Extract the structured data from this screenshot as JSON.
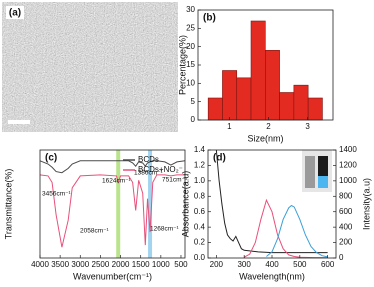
{
  "chart_data": [
    {
      "type": "image",
      "label": "(a)"
    },
    {
      "type": "histogram",
      "label": "(b)",
      "xlabel": "Size(nm)",
      "ylabel": "Percentage(%)",
      "bins": [
        0.46,
        0.825,
        1.19,
        1.555,
        1.92,
        2.285,
        2.65,
        3.015,
        3.38
      ],
      "values": [
        6,
        13.5,
        11.5,
        27,
        19,
        7.5,
        9.5,
        6
      ],
      "color": "#e32b22",
      "xlim": [
        0.2,
        3.65
      ],
      "xticks": [
        1,
        2,
        3
      ],
      "ylim": [
        0,
        30
      ],
      "yticks": [
        0,
        5,
        10,
        15,
        20,
        25,
        30
      ]
    },
    {
      "type": "line",
      "label": "(c)",
      "xlabel": "Wavenumber(cm⁻¹)",
      "ylabel": "Transmittance(%)",
      "x": [
        4000,
        3800,
        3700,
        3600,
        3456,
        3300,
        3200,
        3000,
        2500,
        2100,
        2058,
        2000,
        1800,
        1700,
        1624,
        1550,
        1450,
        1386,
        1330,
        1268,
        1200,
        1100,
        900,
        751,
        600,
        400
      ],
      "series": [
        {
          "name": "BCDs",
          "color": "#4a4a4a",
          "values": [
            90,
            87,
            84,
            80,
            79,
            83,
            87,
            90,
            90,
            90,
            90,
            90,
            90,
            88,
            85,
            89,
            88,
            85,
            88,
            89,
            90,
            90,
            89,
            86,
            89,
            90
          ]
        },
        {
          "name": "BCDs+NO₂⁻",
          "color": "#e8507a",
          "values": [
            77,
            76,
            70,
            40,
            10,
            35,
            65,
            76,
            77,
            76,
            70,
            76,
            76,
            70,
            44,
            72,
            60,
            12,
            55,
            24,
            70,
            77,
            77,
            76,
            77,
            77
          ]
        }
      ],
      "bands": [
        {
          "value": 2058,
          "color": "#b9e48c"
        },
        {
          "value": 1268,
          "color": "#a3d4ef"
        }
      ],
      "annotations": [
        "3456cm⁻¹",
        "1624cm⁻¹",
        "1386cm⁻¹",
        "751cm⁻¹",
        "2058cm⁻¹",
        "1268cm⁻¹"
      ],
      "xlim": [
        4000,
        400
      ],
      "xticks": [
        4000,
        3500,
        3000,
        2500,
        2000,
        1500,
        1000,
        500
      ],
      "ylim": [
        0,
        100
      ]
    },
    {
      "type": "line",
      "label": "(d)",
      "xlabel": "Wavelength(nm)",
      "ylabel": "Absorbance(a.u)",
      "y2label": "Intensity(a.u)",
      "series": [
        {
          "color": "#222222",
          "x": [
            200,
            210,
            220,
            230,
            240,
            250,
            260,
            270,
            280,
            290,
            300,
            350,
            400,
            450,
            500,
            550,
            600
          ],
          "values": [
            1.4,
            1.0,
            0.7,
            0.45,
            0.3,
            0.25,
            0.22,
            0.28,
            0.2,
            0.12,
            0.1,
            0.08,
            0.07,
            0.07,
            0.07,
            0.07,
            0.07
          ]
        },
        {
          "color": "#e8507a",
          "axis": "y2",
          "x": [
            300,
            320,
            340,
            360,
            380,
            400,
            420,
            440,
            460,
            480,
            500,
            550,
            600
          ],
          "values": [
            10,
            50,
            200,
            500,
            750,
            600,
            300,
            120,
            40,
            20,
            10,
            5,
            5
          ]
        },
        {
          "color": "#3a9fd8",
          "axis": "y2",
          "x": [
            380,
            400,
            420,
            440,
            460,
            470,
            480,
            500,
            520,
            540,
            560,
            580,
            600
          ],
          "values": [
            20,
            80,
            250,
            500,
            650,
            680,
            660,
            500,
            300,
            150,
            70,
            30,
            15
          ]
        }
      ],
      "xlim": [
        170,
        630
      ],
      "xticks": [
        200,
        300,
        400,
        500,
        600
      ],
      "ylim": [
        0,
        1.4
      ],
      "yticks": [
        {
          "value": 0,
          "label": "0.0"
        },
        0.2,
        0.4,
        0.6,
        0.8,
        {
          "value": 1,
          "label": "1.0"
        },
        1.2,
        1.4
      ],
      "y2lim": [
        0,
        1400
      ],
      "y2ticks": [
        0,
        200,
        400,
        600,
        800,
        1000,
        1200,
        1400
      ]
    }
  ]
}
